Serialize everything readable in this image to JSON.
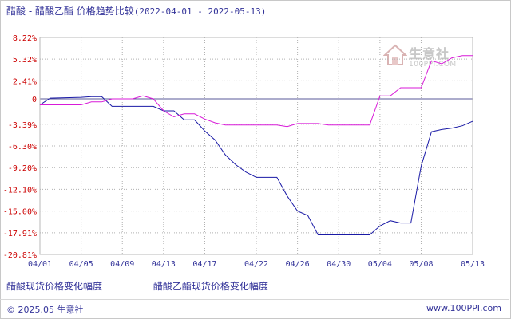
{
  "title": "醋酸 - 醋酸乙酯 价格趋势比较",
  "date_range": "(2022-04-01 - 2022-05-13)",
  "watermark": {
    "name": "生意社",
    "url": "100PPI.COM"
  },
  "footer": {
    "copyright": "© 2025.05 生意社",
    "site": "www.100PPI.com"
  },
  "colors": {
    "series1": "#1a1aa6",
    "series2": "#d81ad8",
    "grid": "#b0b0b0",
    "zero": "#5a5a9a"
  },
  "chart_data": {
    "type": "line",
    "title": "醋酸 - 醋酸乙酯 价格趋势比较",
    "xlabel": "",
    "ylabel": "",
    "yticks": [
      "8.22%",
      "5.32%",
      "2.41%",
      "0",
      "-3.39%",
      "-6.30%",
      "-9.20%",
      "-12.10%",
      "-15.00%",
      "-17.91%",
      "-20.81%"
    ],
    "ytick_values": [
      8.22,
      5.32,
      2.41,
      0,
      -3.39,
      -6.3,
      -9.2,
      -12.1,
      -15.0,
      -17.91,
      -20.81
    ],
    "ylim": [
      -20.81,
      8.22
    ],
    "xticks": [
      "04/01",
      "04/05",
      "04/09",
      "04/13",
      "04/17",
      "04/22",
      "04/26",
      "04/30",
      "05/04",
      "05/08",
      "05/13"
    ],
    "series": [
      {
        "name": "醋酸现货价格变化幅度",
        "points": [
          [
            "04/01",
            -0.8
          ],
          [
            "04/02",
            0.1
          ],
          [
            "04/05",
            0.2
          ],
          [
            "04/06",
            0.3
          ],
          [
            "04/07",
            0.3
          ],
          [
            "04/08",
            -1.0
          ],
          [
            "04/09",
            -1.0
          ],
          [
            "04/11",
            -1.0
          ],
          [
            "04/12",
            -1.0
          ],
          [
            "04/13",
            -1.6
          ],
          [
            "04/14",
            -1.6
          ],
          [
            "04/15",
            -2.8
          ],
          [
            "04/16",
            -2.8
          ],
          [
            "04/17",
            -4.3
          ],
          [
            "04/18",
            -5.5
          ],
          [
            "04/19",
            -7.5
          ],
          [
            "04/20",
            -8.8
          ],
          [
            "04/21",
            -9.8
          ],
          [
            "04/22",
            -10.5
          ],
          [
            "04/24",
            -10.5
          ],
          [
            "04/25",
            -13.0
          ],
          [
            "04/26",
            -15.0
          ],
          [
            "04/27",
            -15.6
          ],
          [
            "04/28",
            -18.2
          ],
          [
            "04/29",
            -18.2
          ],
          [
            "04/30",
            -18.2
          ],
          [
            "05/01",
            -18.2
          ],
          [
            "05/02",
            -18.2
          ],
          [
            "05/03",
            -18.2
          ],
          [
            "05/04",
            -17.0
          ],
          [
            "05/05",
            -16.3
          ],
          [
            "05/06",
            -16.6
          ],
          [
            "05/07",
            -16.6
          ],
          [
            "05/08",
            -9.0
          ],
          [
            "05/09",
            -4.4
          ],
          [
            "05/10",
            -4.1
          ],
          [
            "05/11",
            -3.9
          ],
          [
            "05/12",
            -3.6
          ],
          [
            "05/13",
            -3.0
          ]
        ]
      },
      {
        "name": "醋酸乙酯现货价格变化幅度",
        "points": [
          [
            "04/01",
            -0.8
          ],
          [
            "04/02",
            -0.8
          ],
          [
            "04/05",
            -0.8
          ],
          [
            "04/06",
            -0.4
          ],
          [
            "04/07",
            -0.4
          ],
          [
            "04/08",
            0.0
          ],
          [
            "04/09",
            0.0
          ],
          [
            "04/10",
            0.0
          ],
          [
            "04/11",
            0.4
          ],
          [
            "04/12",
            0.0
          ],
          [
            "04/13",
            -1.6
          ],
          [
            "04/14",
            -2.4
          ],
          [
            "04/15",
            -2.0
          ],
          [
            "04/16",
            -2.0
          ],
          [
            "04/17",
            -2.7
          ],
          [
            "04/18",
            -3.2
          ],
          [
            "04/19",
            -3.5
          ],
          [
            "04/20",
            -3.5
          ],
          [
            "04/22",
            -3.5
          ],
          [
            "04/24",
            -3.5
          ],
          [
            "04/25",
            -3.7
          ],
          [
            "04/26",
            -3.3
          ],
          [
            "04/27",
            -3.3
          ],
          [
            "04/28",
            -3.3
          ],
          [
            "04/29",
            -3.5
          ],
          [
            "04/30",
            -3.5
          ],
          [
            "05/01",
            -3.5
          ],
          [
            "05/02",
            -3.5
          ],
          [
            "05/03",
            -3.5
          ],
          [
            "05/04",
            0.4
          ],
          [
            "05/05",
            0.4
          ],
          [
            "05/06",
            1.5
          ],
          [
            "05/07",
            1.5
          ],
          [
            "05/08",
            1.5
          ],
          [
            "05/09",
            5.1
          ],
          [
            "05/10",
            4.7
          ],
          [
            "05/11",
            5.5
          ],
          [
            "05/12",
            5.8
          ],
          [
            "05/13",
            5.8
          ]
        ]
      }
    ]
  }
}
